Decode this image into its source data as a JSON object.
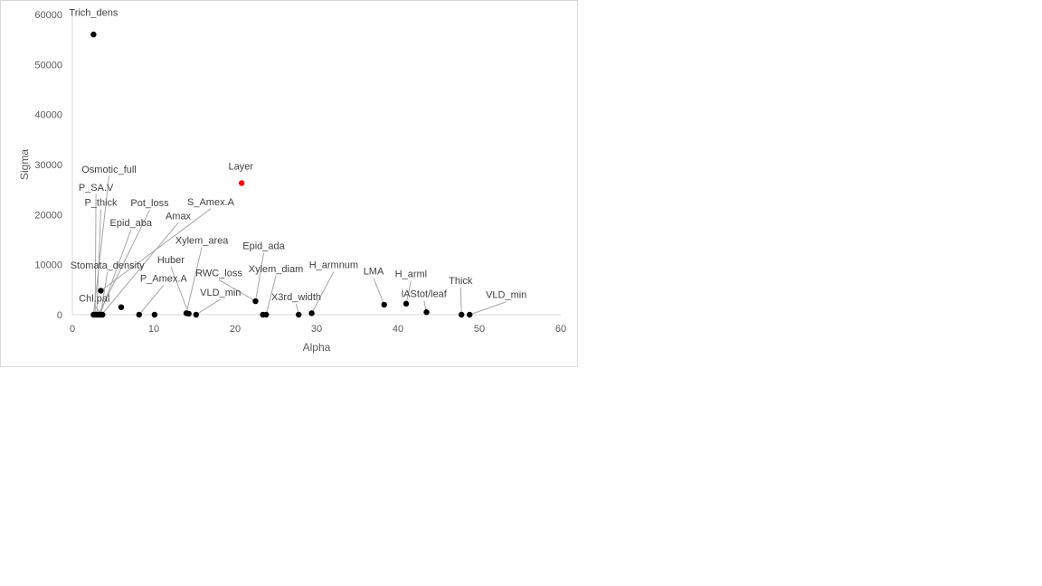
{
  "chart_data": {
    "type": "scatter",
    "title": "",
    "xlabel": "Alpha",
    "ylabel": "Sigma",
    "xlim": [
      0,
      60
    ],
    "ylim": [
      0,
      60000
    ],
    "x_ticks": [
      0,
      10,
      20,
      30,
      40,
      50,
      60
    ],
    "y_ticks": [
      0,
      10000,
      20000,
      30000,
      40000,
      50000,
      60000
    ],
    "grid": false,
    "point_color": "#000000",
    "highlight_color": "#ff0000",
    "points": [
      {
        "label": "Trich_dens",
        "x": 2.6,
        "y": 56000
      },
      {
        "label": "Layer",
        "x": 20.8,
        "y": 26300,
        "highlight": true
      },
      {
        "label": "Osmotic_full",
        "x": 2.6,
        "y": 0
      },
      {
        "label": "P_SA.V",
        "x": 2.8,
        "y": 0
      },
      {
        "label": "P_thick",
        "x": 3.0,
        "y": 0
      },
      {
        "label": "Pot_loss",
        "x": 3.2,
        "y": 0
      },
      {
        "label": "Epid_aba",
        "x": 3.4,
        "y": 0
      },
      {
        "label": "Amax",
        "x": 3.6,
        "y": 0
      },
      {
        "label": "S_Amex.A",
        "x": 3.5,
        "y": 4800
      },
      {
        "label": "Stomata_density",
        "x": 6.0,
        "y": 1500
      },
      {
        "label": "Chl.pal",
        "x": 3.7,
        "y": 0
      },
      {
        "label": "P_Amex.A",
        "x": 8.2,
        "y": 0
      },
      {
        "label": "Huber",
        "x": 10.1,
        "y": 0
      },
      {
        "label": "Xylem_area",
        "x": 14.0,
        "y": 300
      },
      {
        "label": "VLD_min",
        "x": 14.3,
        "y": 200
      },
      {
        "label": "RWC_loss",
        "x": 15.2,
        "y": 0
      },
      {
        "label": "Epid_ada",
        "x": 22.5,
        "y": 2700
      },
      {
        "label": "Xylem_diam",
        "x": 23.4,
        "y": 0
      },
      {
        "label": "X3rd_width",
        "x": 23.8,
        "y": 0
      },
      {
        "label": "H_armnum",
        "x": 27.8,
        "y": 0
      },
      {
        "label": "LMA",
        "x": 29.4,
        "y": 300
      },
      {
        "label": "H_arml",
        "x": 38.3,
        "y": 2000
      },
      {
        "label": "lAStot/leaf",
        "x": 41.0,
        "y": 2200
      },
      {
        "label": "Thick",
        "x": 43.5,
        "y": 500
      },
      {
        "label": "VLD_min",
        "x": 47.8,
        "y": 0
      },
      {
        "label": "",
        "x": 48.8,
        "y": 0
      }
    ],
    "annotations": [
      {
        "text": "Trich_dens",
        "x": 2.6,
        "y": 59700,
        "ax": 2.6,
        "ay": 56000,
        "leader": false
      },
      {
        "text": "Layer",
        "x": 20.7,
        "y": 29000,
        "ax": 20.8,
        "ay": 26300,
        "leader": false
      },
      {
        "text": "Osmotic_full",
        "x": 4.5,
        "y": 28400,
        "ax": 2.6,
        "ay": 0,
        "leader": true
      },
      {
        "text": "P_SA.V",
        "x": 2.9,
        "y": 24800,
        "ax": 2.8,
        "ay": 0,
        "leader": true
      },
      {
        "text": "P_thick",
        "x": 3.5,
        "y": 21800,
        "ax": 3.0,
        "ay": 0,
        "leader": true
      },
      {
        "text": "Pot_loss",
        "x": 9.5,
        "y": 21700,
        "ax": 3.2,
        "ay": 0,
        "leader": true
      },
      {
        "text": "S_Amex.A",
        "x": 17.0,
        "y": 21900,
        "ax": 3.5,
        "ay": 4800,
        "leader": true
      },
      {
        "text": "Amax",
        "x": 13.0,
        "y": 19100,
        "ax": 3.6,
        "ay": 0,
        "leader": true
      },
      {
        "text": "Epid_aba",
        "x": 7.2,
        "y": 17700,
        "ax": 3.4,
        "ay": 0,
        "leader": true
      },
      {
        "text": "Xylem_area",
        "x": 15.9,
        "y": 14200,
        "ax": 14.0,
        "ay": 300,
        "leader": true
      },
      {
        "text": "Epid_ada",
        "x": 23.5,
        "y": 13100,
        "ax": 22.5,
        "ay": 2700,
        "leader": true
      },
      {
        "text": "H_armnum",
        "x": 32.1,
        "y": 9300,
        "ax": 29.4,
        "ay": 300,
        "leader": true
      },
      {
        "text": "LMA",
        "x": 37.0,
        "y": 8000,
        "ax": 38.3,
        "ay": 2000,
        "leader": true
      },
      {
        "text": "H_arml",
        "x": 41.6,
        "y": 7500,
        "ax": 41.0,
        "ay": 2200,
        "leader": true
      },
      {
        "text": "Huber",
        "x": 12.1,
        "y": 10300,
        "ax": 14.3,
        "ay": 200,
        "leader": true
      },
      {
        "text": "Stomata_density",
        "x": 4.3,
        "y": 9200,
        "ax": 3.5,
        "ay": 300,
        "leader": true
      },
      {
        "text": "Xylem_diam",
        "x": 25.0,
        "y": 8500,
        "ax": 23.8,
        "ay": 0,
        "leader": true
      },
      {
        "text": "RWC_loss",
        "x": 18.0,
        "y": 7700,
        "ax": 22.5,
        "ay": 2700,
        "leader": true
      },
      {
        "text": "P_Amex.A",
        "x": 11.2,
        "y": 6600,
        "ax": 8.2,
        "ay": 0,
        "leader": true
      },
      {
        "text": "Thick",
        "x": 47.7,
        "y": 6100,
        "ax": 47.8,
        "ay": 0,
        "leader": true
      },
      {
        "text": "VLD_min",
        "x": 18.2,
        "y": 3800,
        "ax": 15.2,
        "ay": 0,
        "leader": true
      },
      {
        "text": "X3rd_width",
        "x": 27.5,
        "y": 2900,
        "ax": 27.8,
        "ay": 0,
        "leader": true
      },
      {
        "text": "lAStot/leaf",
        "x": 43.2,
        "y": 3500,
        "ax": 43.5,
        "ay": 500,
        "leader": true
      },
      {
        "text": "VLD_min",
        "x": 53.3,
        "y": 3300,
        "ax": 48.8,
        "ay": 0,
        "leader": true
      },
      {
        "text": "Chl.pal",
        "x": 2.7,
        "y": 2600,
        "ax": 3.6,
        "ay": 0,
        "leader": true
      }
    ]
  }
}
